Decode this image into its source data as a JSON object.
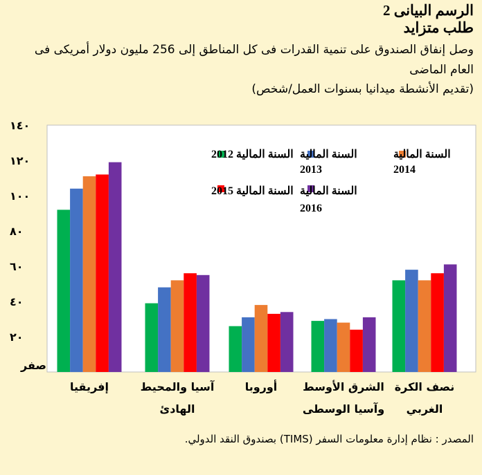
{
  "header": {
    "figure_label": "الرسم البيانى 2",
    "title": "طلب متزايد",
    "subtitle": "وصل إنفاق الصندوق على تنمية القدرات فى كل المناطق إلى 256 مليون دولار أمريكى فى العام الماضى",
    "unit": "(تقديم الأنشطة ميدانيا بسنوات العمل/شخص)"
  },
  "source": "المصدر : نظام إدارة معلومات السفر  (TIMS) بصندوق النقد الدولي.",
  "chart_data": {
    "type": "bar",
    "categories": [
      "إفريقيا",
      "آسيا والمحيط الهادئ",
      "أوروبا",
      "الشرق الأوسط وآسيا الوسطى",
      "نصف الكرة الغربي"
    ],
    "category_lines": [
      [
        "إفريقيا"
      ],
      [
        "آسيا والمحيط",
        "الهادئ"
      ],
      [
        "أوروبا"
      ],
      [
        "الشرق الأوسط",
        "وآسيا الوسطى"
      ],
      [
        "نصف الكرة",
        "الغربي"
      ]
    ],
    "series": [
      {
        "name": "السنة المالية 2012",
        "color": "#00b050",
        "values": [
          92,
          39,
          26,
          29,
          52
        ]
      },
      {
        "name": "السنة المالية 2013",
        "color": "#4472c4",
        "values": [
          104,
          48,
          31,
          30,
          58
        ]
      },
      {
        "name": "السنة المالية 2014",
        "color": "#ed7d31",
        "values": [
          111,
          52,
          38,
          28,
          52
        ]
      },
      {
        "name": "السنة المالية 2015",
        "color": "#ff0000",
        "values": [
          112,
          56,
          33,
          24,
          56
        ]
      },
      {
        "name": "السنة المالية 2016",
        "color": "#7030a0",
        "values": [
          119,
          55,
          34,
          31,
          61
        ]
      }
    ],
    "y_ticks": [
      "صفر",
      "٢٠",
      "٤٠",
      "٦٠",
      "٨٠",
      "١٠٠",
      "١٢٠",
      "١٤٠"
    ],
    "ylim": [
      0,
      140
    ],
    "grid": false,
    "legend_position": "top-right"
  }
}
